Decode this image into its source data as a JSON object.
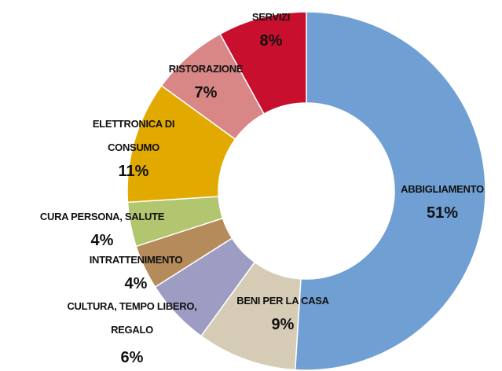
{
  "chart_data": {
    "type": "donut",
    "categories": [
      "ABBIGLIAMENTO",
      "BENI PER LA CASA",
      "CULTURA, TEMPO LIBERO, REGALO",
      "INTRATTENIMENTO",
      "CURA PERSONA, SALUTE",
      "ELETTRONICA DI CONSUMO",
      "RISTORAZIONE",
      "SERVIZI"
    ],
    "values": [
      51,
      9,
      6,
      4,
      4,
      11,
      7,
      8
    ],
    "value_labels": [
      "51%",
      "9%",
      "6%",
      "4%",
      "4%",
      "11%",
      "7%",
      "8%"
    ],
    "colors": [
      "#6f9fd3",
      "#d6ccb6",
      "#9d9dc4",
      "#b68b5b",
      "#b2c56f",
      "#e2aa00",
      "#d98686",
      "#c8102e"
    ]
  }
}
